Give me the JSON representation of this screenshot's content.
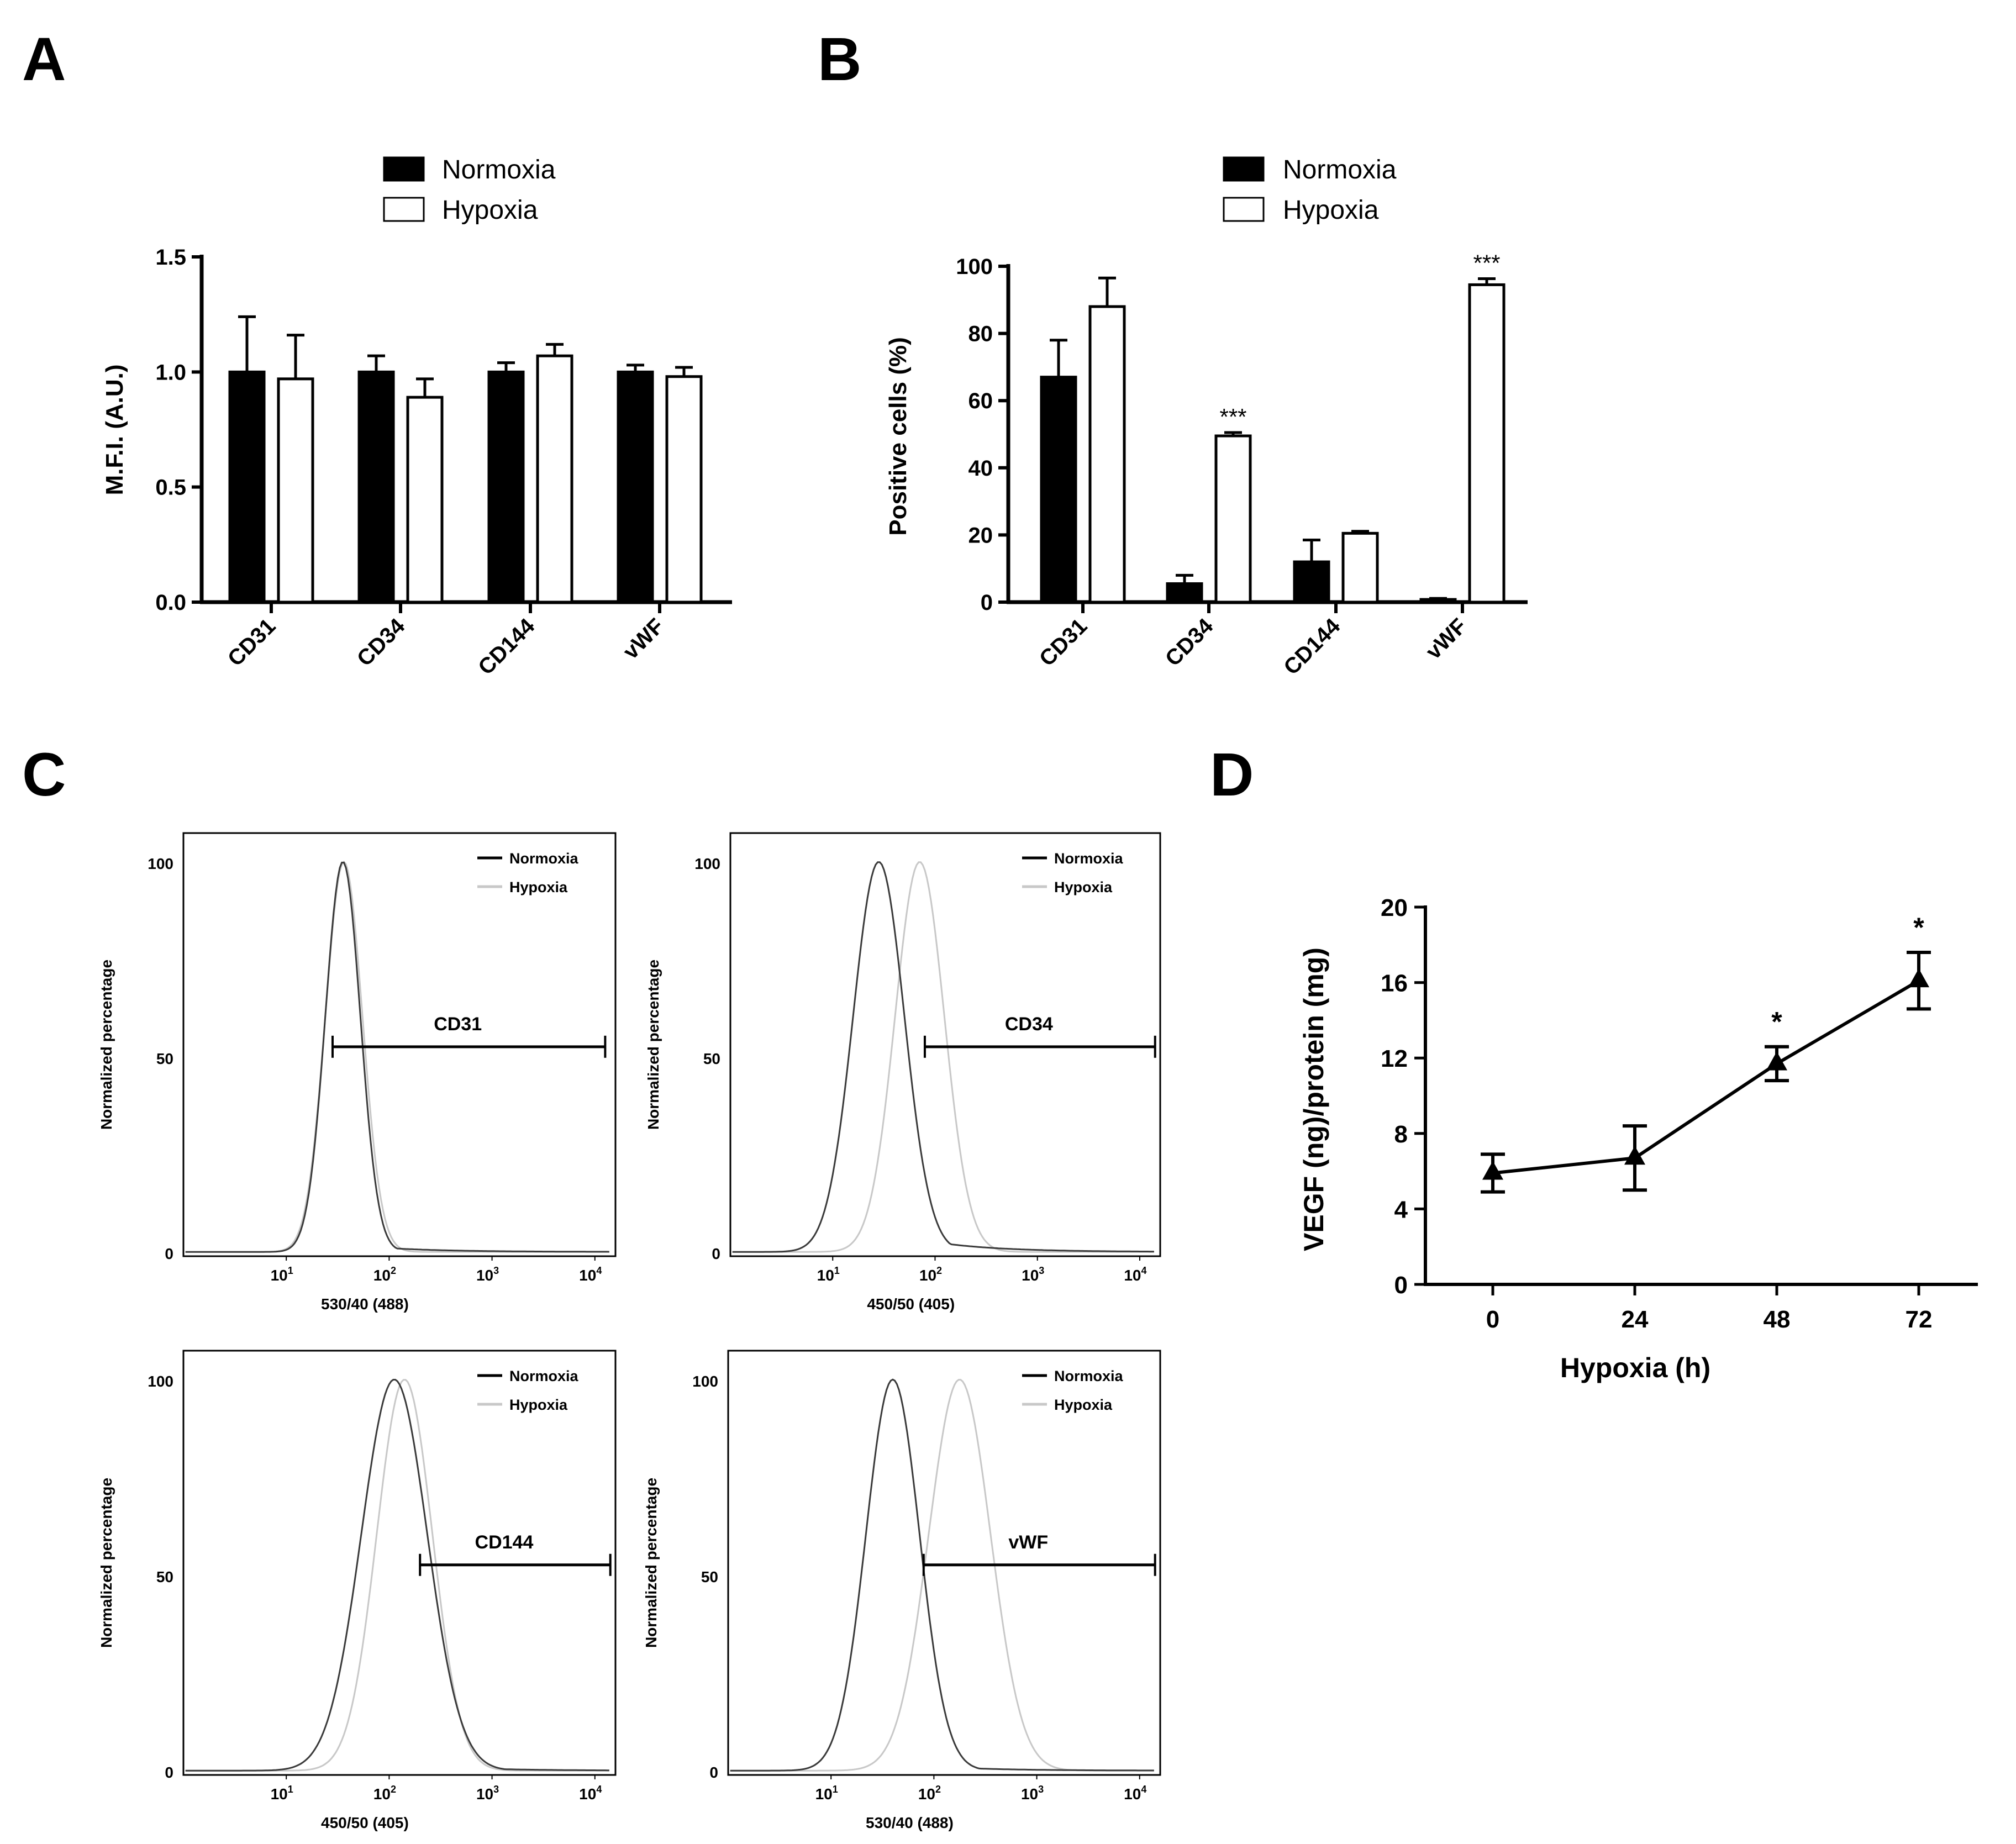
{
  "panels": {
    "A": "A",
    "B": "B",
    "C": "C",
    "D": "D"
  },
  "colors": {
    "normoxia": "#000000",
    "hypoxia": "#ffffff",
    "hypoxia_curve": "#c8c8c8",
    "normoxia_curve": "#3a3a3a"
  },
  "chart_data": [
    {
      "id": "A",
      "type": "bar",
      "categories": [
        "CD31",
        "CD34",
        "CD144",
        "vWF"
      ],
      "series": [
        {
          "name": "Normoxia",
          "values": [
            1.0,
            1.0,
            1.0,
            1.0
          ],
          "errors": [
            0.24,
            0.07,
            0.04,
            0.03
          ]
        },
        {
          "name": "Hypoxia",
          "values": [
            0.97,
            0.89,
            1.07,
            0.98
          ],
          "errors": [
            0.19,
            0.08,
            0.05,
            0.04
          ]
        }
      ],
      "ylabel": "M.F.I. (A.U.)",
      "ylim": [
        0,
        1.5
      ],
      "yticks": [
        "0.0",
        "0.5",
        "1.0",
        "1.5"
      ],
      "legend": [
        "Normoxia",
        "Hypoxia"
      ]
    },
    {
      "id": "B",
      "type": "bar",
      "categories": [
        "CD31",
        "CD34",
        "CD144",
        "vWF"
      ],
      "series": [
        {
          "name": "Normoxia",
          "values": [
            67,
            5.5,
            12,
            0.8
          ],
          "errors": [
            11,
            2.5,
            6.5,
            0.3
          ]
        },
        {
          "name": "Hypoxia",
          "values": [
            88,
            49.5,
            20.5,
            94.5
          ],
          "errors": [
            8.5,
            1,
            0.6,
            1.8
          ]
        }
      ],
      "significance": [
        "",
        "***",
        "",
        "***"
      ],
      "ylabel": "Positive cells (%)",
      "ylim": [
        0,
        100
      ],
      "yticks": [
        "0",
        "20",
        "40",
        "60",
        "80",
        "100"
      ],
      "legend": [
        "Normoxia",
        "Hypoxia"
      ]
    },
    {
      "id": "C",
      "type": "line",
      "subplots": [
        {
          "marker": "CD31",
          "xlabel": "530/40 (488)",
          "norm_peak": 1.55,
          "norm_width": 0.17,
          "hyp_peak": 1.56,
          "hyp_width": 0.18,
          "gate": [
            1.45,
            4.1
          ]
        },
        {
          "marker": "CD34",
          "xlabel": "450/50 (405)",
          "norm_peak": 1.45,
          "norm_width": 0.25,
          "hyp_peak": 1.85,
          "hyp_width": 0.24,
          "gate": [
            1.9,
            4.15
          ]
        },
        {
          "marker": "CD144",
          "xlabel": "450/50 (405)",
          "norm_peak": 2.05,
          "norm_width": 0.32,
          "hyp_peak": 2.15,
          "hyp_width": 0.27,
          "gate": [
            2.3,
            4.15
          ]
        },
        {
          "marker": "vWF",
          "xlabel": "530/40 (488)",
          "norm_peak": 1.6,
          "norm_width": 0.26,
          "hyp_peak": 2.25,
          "hyp_width": 0.3,
          "gate": [
            1.9,
            4.15
          ]
        }
      ],
      "ylabel": "Normalized percentage",
      "yticks": [
        "0",
        "50",
        "100"
      ],
      "xticks": [
        "10",
        "10",
        "10",
        "10"
      ],
      "xtick_exps": [
        "1",
        "2",
        "3",
        "4"
      ],
      "legend": [
        "Normoxia",
        "Hypoxia"
      ]
    },
    {
      "id": "D",
      "type": "line",
      "x": [
        0,
        24,
        48,
        72
      ],
      "values": [
        5.9,
        6.7,
        11.7,
        16.1
      ],
      "errors": [
        1.0,
        1.7,
        0.9,
        1.5
      ],
      "significance": [
        "",
        "",
        "*",
        "*"
      ],
      "xlabel": "Hypoxia (h)",
      "ylabel": "VEGF (ng)/protein (mg)",
      "ylim": [
        0,
        20
      ],
      "xticks": [
        "0",
        "24",
        "48",
        "72"
      ],
      "yticks": [
        "0",
        "4",
        "8",
        "12",
        "16",
        "20"
      ]
    }
  ]
}
